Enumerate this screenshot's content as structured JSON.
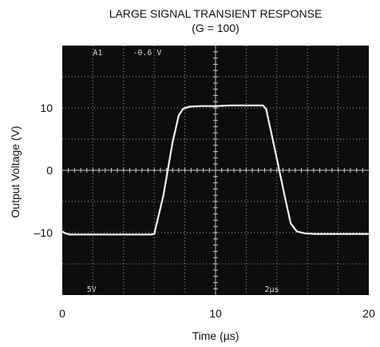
{
  "chart_data": {
    "type": "line",
    "title": "LARGE SIGNAL TRANSIENT RESPONSE",
    "subtitle": "(G = 100)",
    "xlabel": "Time (µs)",
    "ylabel": "Output Voltage (V)",
    "xlim": [
      0,
      20
    ],
    "ylim": [
      -20,
      20
    ],
    "x_ticks": [
      {
        "value": 0,
        "label": "0"
      },
      {
        "value": 10,
        "label": "10"
      },
      {
        "value": 20,
        "label": "20"
      }
    ],
    "y_ticks": [
      {
        "value": 10,
        "label": "10"
      },
      {
        "value": 0,
        "label": "0"
      },
      {
        "value": -10,
        "label": "–10"
      }
    ],
    "grid": true,
    "background": "#0d0d0d",
    "trace_color": "#f2f2f2",
    "grid_color": "#cfcfcf",
    "screen_annotations": [
      {
        "text": "A1",
        "x": 2.0,
        "y": 19.0
      },
      {
        "text": "-0.6 V",
        "x": 4.6,
        "y": 19.0
      },
      {
        "text": "5V",
        "x": 1.6,
        "y": -19.0
      },
      {
        "text": "2µs",
        "x": 13.2,
        "y": -19.0
      }
    ],
    "series": [
      {
        "x": [
          0,
          0.2,
          0.5,
          1,
          2,
          3,
          4,
          5,
          5.8,
          6.0,
          6.6,
          7.2,
          7.6,
          7.9,
          8.3,
          9,
          10,
          11,
          12,
          13.1,
          13.3,
          13.9,
          14.5,
          14.9,
          15.3,
          15.8,
          16.5,
          17.5,
          18.5,
          19.5,
          20
        ],
        "y": [
          -9.8,
          -10.1,
          -10.3,
          -10.3,
          -10.3,
          -10.3,
          -10.3,
          -10.3,
          -10.3,
          -10.2,
          -4.0,
          4.5,
          8.8,
          9.9,
          10.2,
          10.3,
          10.3,
          10.4,
          10.4,
          10.4,
          9.8,
          3.0,
          -4.0,
          -8.5,
          -9.8,
          -10.1,
          -10.2,
          -10.2,
          -10.2,
          -10.2,
          -10.2
        ]
      }
    ]
  }
}
